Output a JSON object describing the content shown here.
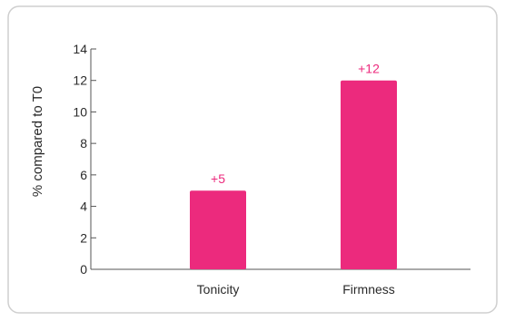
{
  "colors": {
    "bar": "#ec2a7d",
    "data_label": "#ec2a7d",
    "axis": "#555555",
    "text": "#2a2a2a",
    "border": "#cfcfcf"
  },
  "chart_data": {
    "type": "bar",
    "title": "",
    "xlabel": "",
    "ylabel": "% compared to T0",
    "categories": [
      "Tonicity",
      "Firmness"
    ],
    "values": [
      5,
      12
    ],
    "data_labels": [
      "+5",
      "+12"
    ],
    "ylim": [
      0,
      14
    ],
    "yticks": [
      0,
      2,
      4,
      6,
      8,
      10,
      12,
      14
    ],
    "ytick_labels": [
      "0",
      "2",
      "4",
      "6",
      "8",
      "10",
      "12",
      "14"
    ],
    "grid": false,
    "legend": "none"
  }
}
